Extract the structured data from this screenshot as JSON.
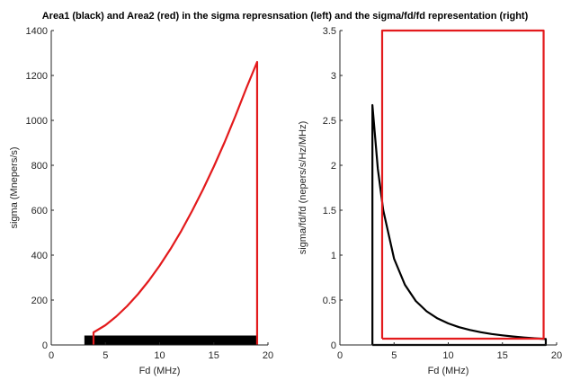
{
  "figure": {
    "title": "Area1 (black) and Area2 (red) in the sigma represnsation (left) and the sigma/fd/fd representation (right)"
  },
  "colors": {
    "area1": "#000000",
    "area2": "#e31a1c",
    "axis": "#262626"
  },
  "chart_data": [
    {
      "type": "line",
      "xlabel": "Fd (MHz)",
      "ylabel": "sigma (Mnepers/s)",
      "xlim": [
        0,
        20
      ],
      "ylim": [
        0,
        1400
      ],
      "xticks": [
        0,
        5,
        10,
        15,
        20
      ],
      "yticks": [
        0,
        200,
        400,
        600,
        800,
        1000,
        1200,
        1400
      ],
      "grid": false,
      "series": [
        {
          "color": "black",
          "style": "filled-band",
          "x": [
            3.1,
            19
          ],
          "y": [
            0,
            40
          ]
        },
        {
          "color": "red",
          "x": [
            3.9,
            3.9,
            5,
            6,
            7,
            8,
            9,
            10,
            11,
            12,
            13,
            14,
            15,
            16,
            17,
            18,
            19,
            19
          ],
          "y": [
            0,
            56,
            88,
            127,
            173,
            226,
            286,
            353,
            427,
            508,
            597,
            692,
            794,
            903,
            1020,
            1143,
            1260,
            0
          ]
        }
      ]
    },
    {
      "type": "line",
      "xlabel": "Fd (MHz)",
      "ylabel": "sigma/fd/fd (nepers/s/Hz/MHz)",
      "xlim": [
        0,
        20
      ],
      "ylim": [
        0,
        3.5
      ],
      "xticks": [
        0,
        5,
        10,
        15,
        20
      ],
      "yticks": [
        0,
        0.5,
        1,
        1.5,
        2,
        2.5,
        3,
        3.5
      ],
      "grid": false,
      "series": [
        {
          "color": "black",
          "x": [
            3,
            3,
            3.5,
            4,
            5,
            6,
            7,
            8,
            9,
            10,
            11,
            12,
            13,
            14,
            15,
            16,
            17,
            18,
            19,
            19,
            3
          ],
          "y": [
            0,
            2.67,
            1.96,
            1.5,
            0.96,
            0.67,
            0.49,
            0.375,
            0.296,
            0.24,
            0.198,
            0.167,
            0.142,
            0.122,
            0.107,
            0.094,
            0.083,
            0.074,
            0.066,
            0,
            0
          ]
        },
        {
          "color": "red",
          "x": [
            3.9,
            3.9,
            18.8,
            18.8,
            3.9
          ],
          "y": [
            0.07,
            3.5,
            3.5,
            0.07,
            0.07
          ]
        }
      ]
    }
  ]
}
